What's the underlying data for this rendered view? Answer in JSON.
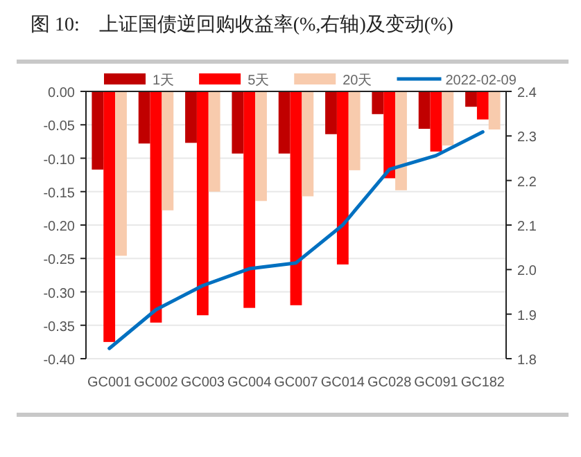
{
  "chart_data": {
    "type": "bar",
    "title": "图 10:    上证国债逆回购收益率(%,右轴)及变动(%)",
    "categories": [
      "GC001",
      "GC002",
      "GC003",
      "GC004",
      "GC007",
      "GC014",
      "GC028",
      "GC091",
      "GC182"
    ],
    "series": [
      {
        "name": "1天",
        "color": "#c00000",
        "values": [
          -0.117,
          -0.078,
          -0.077,
          -0.093,
          -0.093,
          -0.064,
          -0.034,
          -0.056,
          -0.023
        ]
      },
      {
        "name": "5天",
        "color": "#ff0000",
        "values": [
          -0.375,
          -0.346,
          -0.335,
          -0.324,
          -0.32,
          -0.259,
          -0.13,
          -0.09,
          -0.042
        ]
      },
      {
        "name": "20天",
        "color": "#f8cbad",
        "values": [
          -0.246,
          -0.178,
          -0.15,
          -0.164,
          -0.157,
          -0.118,
          -0.148,
          -0.081,
          -0.057
        ]
      },
      {
        "name": "2022-02-09",
        "color": "#0070c0",
        "type": "line",
        "axis": "y2",
        "values": [
          1.823,
          1.91,
          1.964,
          2.002,
          2.015,
          2.1,
          2.225,
          2.256,
          2.309
        ]
      }
    ],
    "ylim": [
      -0.4,
      0
    ],
    "yticks": [
      {
        "value": -0.4,
        "label": "-0.40"
      },
      {
        "value": -0.35,
        "label": "-0.35"
      },
      {
        "value": -0.3,
        "label": "-0.30"
      },
      {
        "value": -0.25,
        "label": "-0.25"
      },
      {
        "value": -0.2,
        "label": "-0.20"
      },
      {
        "value": -0.15,
        "label": "-0.15"
      },
      {
        "value": -0.1,
        "label": "-0.10"
      },
      {
        "value": -0.05,
        "label": "-0.05"
      },
      {
        "value": 0,
        "label": "0.00"
      }
    ],
    "y2lim": [
      1.8,
      2.4
    ],
    "y2ticks": [
      {
        "value": 1.8,
        "label": "1.8"
      },
      {
        "value": 1.9,
        "label": "1.9"
      },
      {
        "value": 2.0,
        "label": "2.0"
      },
      {
        "value": 2.1,
        "label": "2.1"
      },
      {
        "value": 2.2,
        "label": "2.2"
      },
      {
        "value": 2.3,
        "label": "2.3"
      },
      {
        "value": 2.4,
        "label": "2.4"
      }
    ],
    "grid": "y",
    "legend": "top"
  }
}
